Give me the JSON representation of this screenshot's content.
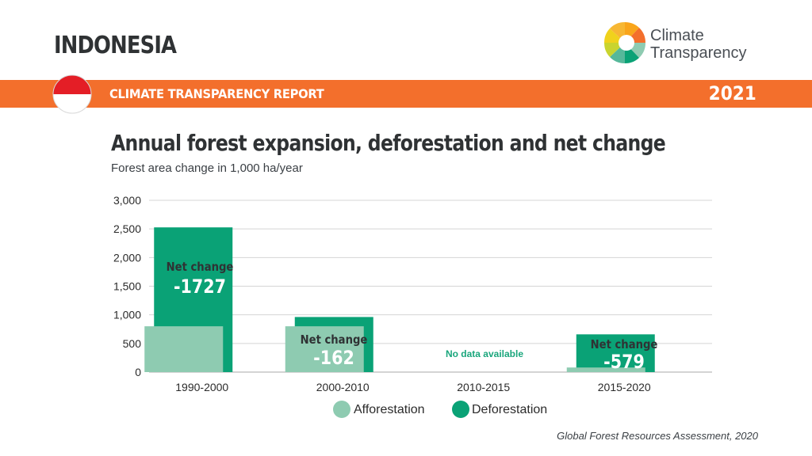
{
  "header": {
    "country": "INDONESIA",
    "report_label": "CLIMATE TRANSPARENCY REPORT",
    "year": "2021",
    "logo_line1": "Climate",
    "logo_line2": "Transparency"
  },
  "colors": {
    "orange": "#f36f2c",
    "afforestation": "#8ecbb1",
    "deforestation": "#0aa276",
    "no_data_text": "#1aa67c"
  },
  "chart_data": {
    "type": "bar",
    "title": "Annual forest expansion, deforestation and net change",
    "subtitle": "Forest area change in 1,000 ha/year",
    "categories": [
      "1990-2000",
      "2000-2010",
      "2010-2015",
      "2015-2020"
    ],
    "ylim": [
      0,
      3000
    ],
    "yticks": [
      0,
      500,
      1000,
      1500,
      2000,
      2500,
      3000
    ],
    "ytick_labels": [
      "0",
      "500",
      "1,000",
      "1,500",
      "2,000",
      "2,500",
      "3,000"
    ],
    "grid": true,
    "legend_position": "bottom",
    "series": [
      {
        "name": "Afforestation",
        "values": [
          800,
          800,
          null,
          80
        ]
      },
      {
        "name": "Deforestation",
        "values": [
          2527,
          962,
          null,
          659
        ]
      }
    ],
    "annotations": [
      {
        "category": "1990-2000",
        "label": "Net change",
        "value": "-1727"
      },
      {
        "category": "2000-2010",
        "label": "Net change",
        "value": "-162"
      },
      {
        "category": "2010-2015",
        "label": "No data available"
      },
      {
        "category": "2015-2020",
        "label": "Net change",
        "value": "-579"
      }
    ]
  },
  "source": "Global Forest Resources Assessment, 2020"
}
